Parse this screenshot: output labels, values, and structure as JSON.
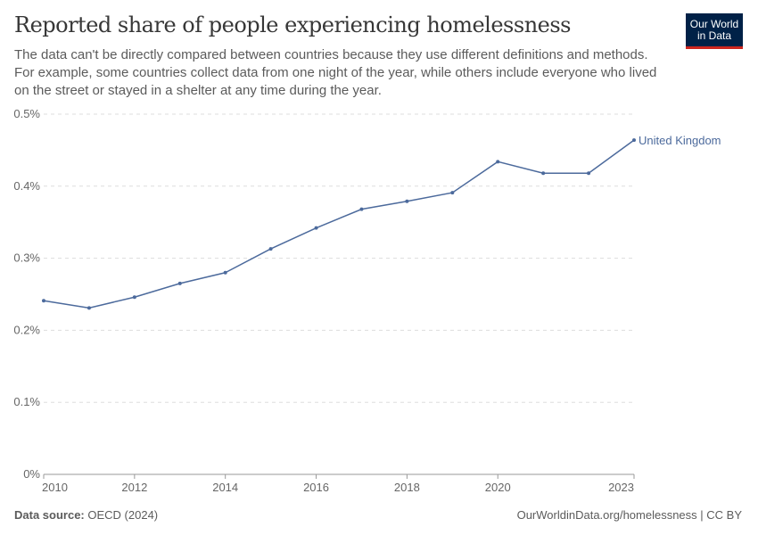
{
  "header": {
    "title": "Reported share of people experiencing homelessness",
    "subtitle": "The data can't be directly compared between countries because they use different definitions and methods. For example, some countries collect data from one night of the year, while others include everyone who lived on the street or stayed in a shelter at any time during the year.",
    "logo": "Our World in Data"
  },
  "footer": {
    "source_label": "Data source:",
    "source": "OECD (2024)",
    "credit": "OurWorldinData.org/homelessness | CC BY"
  },
  "chart_data": {
    "type": "line",
    "title": "Reported share of people experiencing homelessness",
    "xlabel": "",
    "ylabel": "",
    "ylim": [
      0,
      0.5
    ],
    "xlim": [
      2010,
      2023
    ],
    "y_ticks": [
      "0%",
      "0.1%",
      "0.2%",
      "0.3%",
      "0.4%",
      "0.5%"
    ],
    "x_ticks": [
      "2010",
      "2012",
      "2014",
      "2016",
      "2018",
      "2020",
      "2023"
    ],
    "grid": "horizontal dashed",
    "colors": {
      "line": "#4c6a9c"
    },
    "series": [
      {
        "name": "United Kingdom",
        "x": [
          2010,
          2011,
          2012,
          2013,
          2014,
          2015,
          2016,
          2017,
          2018,
          2019,
          2020,
          2021,
          2022,
          2023
        ],
        "y": [
          0.241,
          0.231,
          0.246,
          0.265,
          0.28,
          0.313,
          0.342,
          0.368,
          0.379,
          0.391,
          0.434,
          0.418,
          0.418,
          0.464
        ]
      }
    ]
  }
}
